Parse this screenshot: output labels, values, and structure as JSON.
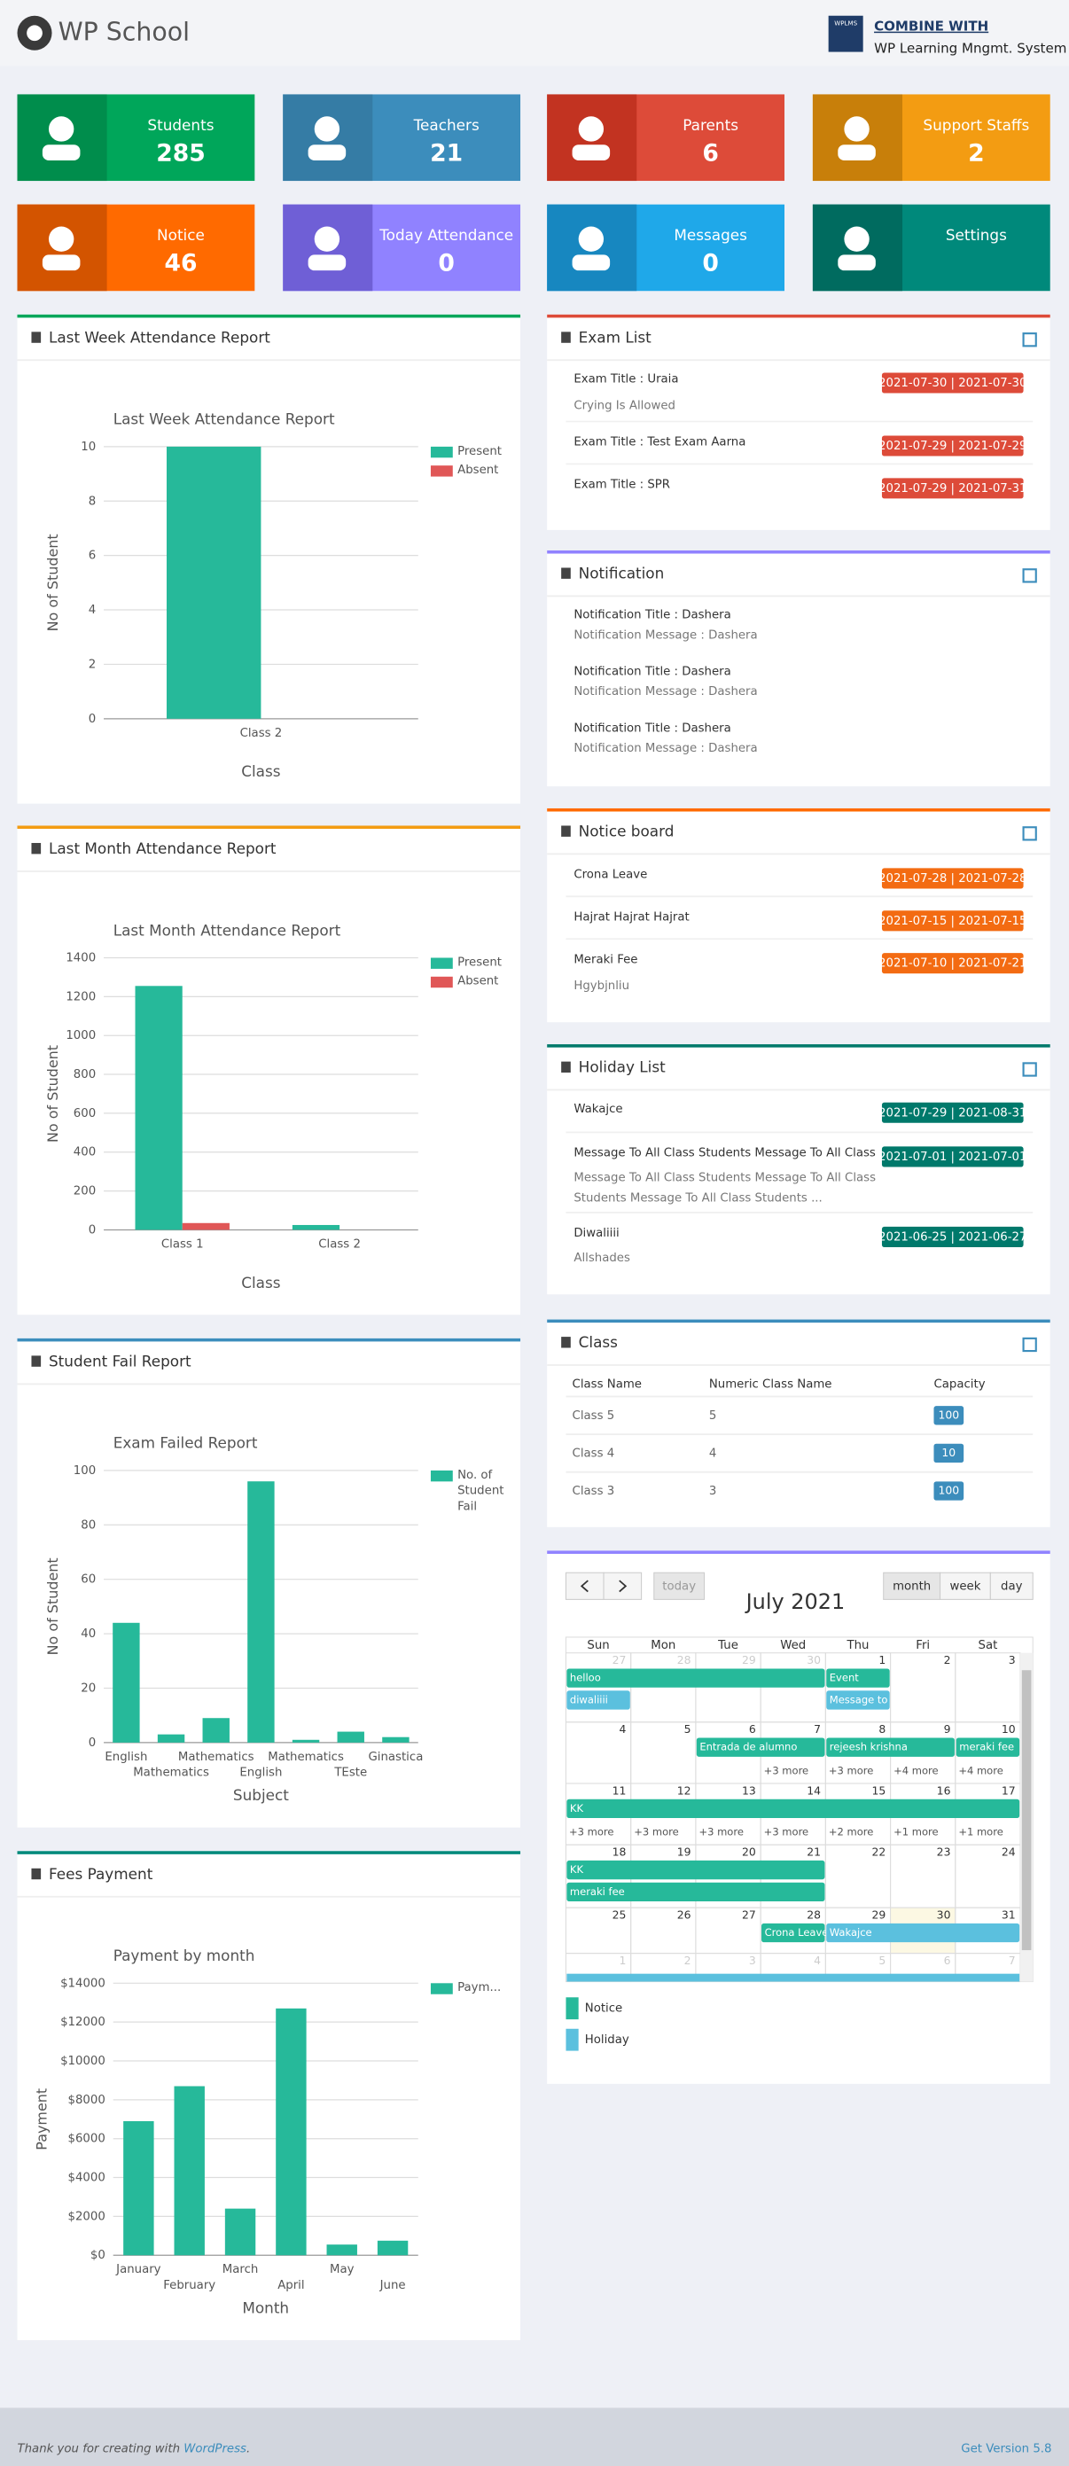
{
  "header": {
    "title": "WP School",
    "logo_text": "WPLMS",
    "combine": "COMBINE WITH",
    "system": "WP Learning Mngmt. System"
  },
  "cards": [
    {
      "label": "Students",
      "value": 285,
      "color": "#00a65a",
      "icon_color": "#008d4c"
    },
    {
      "label": "Teachers",
      "value": 21,
      "color": "#3c8dbc",
      "icon_color": "#357ca5"
    },
    {
      "label": "Parents",
      "value": 6,
      "color": "#dd4b39",
      "icon_color": "#c23321"
    },
    {
      "label": "Support Staffs",
      "value": 2,
      "color": "#f39c12",
      "icon_color": "#c87f0a"
    },
    {
      "label": "Notice",
      "value": 46,
      "color": "#ff6a00",
      "icon_color": "#d35400"
    },
    {
      "label": "Today Attendance",
      "value": 0,
      "color": "#9082ff",
      "icon_color": "#6f5fd6"
    },
    {
      "label": "Messages",
      "value": 0,
      "color": "#1fa8e9",
      "icon_color": "#1787c0"
    },
    {
      "label": "Settings",
      "color": "#00897b",
      "icon_color": "#006b5f"
    }
  ],
  "charts": [
    {
      "panel_title": "Last Week Attendance Report",
      "accent": "#00a65a",
      "type": "bar",
      "title": "Last Week Attendance Report",
      "categories": [
        "Class 2"
      ],
      "series": [
        {
          "name": "Present",
          "color": "#26b99a",
          "values": [
            10
          ]
        },
        {
          "name": "Absent",
          "color": "#e05757",
          "values": [
            0
          ]
        }
      ],
      "ylim": [
        0,
        10
      ],
      "yticks": [
        0,
        2,
        4,
        6,
        8,
        10
      ],
      "grid": true,
      "legend": "right",
      "x_label": "Class",
      "y_label": "No of Student"
    },
    {
      "panel_title": "Last Month Attendance Report",
      "accent": "#f39c12",
      "type": "bar",
      "title": "Last Month Attendance Report",
      "categories": [
        "Class 1",
        "Class 2"
      ],
      "series": [
        {
          "name": "Present",
          "color": "#26b99a",
          "values": [
            1255,
            25
          ]
        },
        {
          "name": "Absent",
          "color": "#e05757",
          "values": [
            35,
            0
          ]
        }
      ],
      "ylim": [
        0,
        1400
      ],
      "yticks": [
        0,
        200,
        400,
        600,
        800,
        1000,
        1200,
        1400
      ],
      "grid": true,
      "legend": "right",
      "x_label": "Class",
      "y_label": "No of Student"
    },
    {
      "panel_title": "Student Fail Report",
      "accent": "#3c8dbc",
      "type": "bar",
      "title": "Exam Failed Report",
      "categories": [
        "English",
        "Mathematics",
        "Mathematics",
        "English",
        "Mathematics",
        "TEste",
        "Ginastica"
      ],
      "series": [
        {
          "name": "No. of Student Fail",
          "color": "#26b99a",
          "values": [
            44,
            3,
            9,
            96,
            1,
            4,
            2
          ]
        }
      ],
      "ylim": [
        0,
        100
      ],
      "yticks": [
        0,
        20,
        40,
        60,
        80,
        100
      ],
      "grid": true,
      "legend": "right",
      "x_label": "Subject",
      "y_label": "No of Student"
    },
    {
      "panel_title": "Fees Payment",
      "accent": "#00897b",
      "type": "bar",
      "title": "Payment by month",
      "categories": [
        "January",
        "February",
        "March",
        "April",
        "May",
        "June"
      ],
      "series": [
        {
          "name": "Paym...",
          "color": "#26b99a",
          "values": [
            6900,
            8700,
            2400,
            12700,
            550,
            750
          ]
        }
      ],
      "ylim": [
        0,
        14000
      ],
      "yticks": [
        {
          "value": 0,
          "label": "$0"
        },
        {
          "value": 2000,
          "label": "$2000"
        },
        {
          "value": 4000,
          "label": "$4000"
        },
        {
          "value": 6000,
          "label": "$6000"
        },
        {
          "value": 8000,
          "label": "$8000"
        },
        {
          "value": 10000,
          "label": "$10000"
        },
        {
          "value": 12000,
          "label": "$12000"
        },
        {
          "value": 14000,
          "label": "$14000"
        }
      ],
      "grid": true,
      "legend": "right",
      "x_label": "Month",
      "y_label": "Payment"
    }
  ],
  "lists": [
    {
      "title": "Exam List",
      "accent": "#dd4b39",
      "badge_color": "#dd4b39",
      "items": [
        {
          "title": "Exam Title : Uraia",
          "subtitle": "Crying Is Allowed",
          "badge": "2021-07-30 | 2021-07-30"
        },
        {
          "title": "Exam Title : Test Exam Aarna",
          "badge": "2021-07-29 | 2021-07-29"
        },
        {
          "title": "Exam Title : SPR",
          "badge": "2021-07-29 | 2021-07-31"
        }
      ]
    },
    {
      "title": "Notification",
      "accent": "#9082ff",
      "items": [
        {
          "title": "Notification Title : Dashera",
          "subtitle": "Notification Message : Dashera"
        },
        {
          "title": "Notification Title : Dashera",
          "subtitle": "Notification Message : Dashera"
        },
        {
          "title": "Notification Title : Dashera",
          "subtitle": "Notification Message : Dashera"
        }
      ]
    },
    {
      "title": "Notice board",
      "accent": "#ff6a00",
      "badge_color": "#f36b12",
      "items": [
        {
          "title": "Crona Leave",
          "badge": "2021-07-28 | 2021-07-28"
        },
        {
          "title": "Hajrat Hajrat Hajrat",
          "badge": "2021-07-15 | 2021-07-15"
        },
        {
          "title": "Meraki Fee",
          "subtitle": "Hgybjnliu",
          "badge": "2021-07-10 | 2021-07-21"
        }
      ]
    },
    {
      "title": "Holiday List",
      "accent": "#00796b",
      "badge_color": "#00796b",
      "items": [
        {
          "title": "Wakajce",
          "badge": "2021-07-29 | 2021-08-31"
        },
        {
          "title": "Message To All Class Students Message To All Class",
          "subtitle": "Message To All Class Students Message To All Class Students Message To All Class Students ...",
          "badge": "2021-07-01 | 2021-07-01"
        },
        {
          "title": "Diwaliiii",
          "subtitle": "Allshades",
          "badge": "2021-06-25 | 2021-06-27"
        }
      ]
    }
  ],
  "class_table": {
    "title": "Class",
    "accent": "#3c8dbc",
    "columns": [
      "Class Name",
      "Numeric Class Name",
      "Capacity"
    ],
    "rows": [
      [
        "Class 5",
        5,
        100
      ],
      [
        "Class 4",
        4,
        10
      ],
      [
        "Class 3",
        3,
        100
      ]
    ]
  },
  "calendar": {
    "accent": "#9082ff",
    "title": "July 2021",
    "today": "today",
    "views": [
      "month",
      "week",
      "day"
    ],
    "days": [
      "Sun",
      "Mon",
      "Tue",
      "Wed",
      "Thu",
      "Fri",
      "Sat"
    ],
    "weeks": [
      [
        27,
        28,
        29,
        30,
        1,
        2,
        3
      ],
      [
        4,
        5,
        6,
        7,
        8,
        9,
        10
      ],
      [
        11,
        12,
        13,
        14,
        15,
        16,
        17
      ],
      [
        18,
        19,
        20,
        21,
        22,
        23,
        24
      ],
      [
        25,
        26,
        27,
        28,
        29,
        30,
        31
      ],
      [
        1,
        2,
        3,
        4,
        5,
        6,
        7
      ]
    ],
    "events": [
      {
        "label": "helloo",
        "type": "notice"
      },
      {
        "label": "Event",
        "type": "notice"
      },
      {
        "label": "diwaliiii",
        "type": "holiday"
      },
      {
        "label": "Message to",
        "type": "holiday"
      },
      {
        "label": "Entrada de alumno",
        "type": "notice"
      },
      {
        "label": "rejeesh krishna",
        "type": "notice"
      },
      {
        "label": "meraki fee",
        "type": "notice"
      },
      {
        "label": "KK",
        "type": "notice"
      },
      {
        "label": "KK",
        "type": "notice"
      },
      {
        "label": "meraki fee",
        "type": "notice"
      },
      {
        "label": "Crona Leave",
        "type": "notice"
      },
      {
        "label": "Wakajce",
        "type": "holiday"
      }
    ],
    "more": [
      "+3 more",
      "+3 more",
      "+4 more",
      "+4 more",
      "+3 more",
      "+3 more",
      "+3 more",
      "+3 more",
      "+2 more",
      "+1 more",
      "+1 more"
    ],
    "legend": [
      {
        "label": "Notice",
        "color": "#26b99a"
      },
      {
        "label": "Holiday",
        "color": "#5bc0de"
      }
    ]
  },
  "footer": {
    "prefix": "Thank you for creating with",
    "link": "WordPress",
    "suffix": ".",
    "version": "Get Version 5.8"
  }
}
